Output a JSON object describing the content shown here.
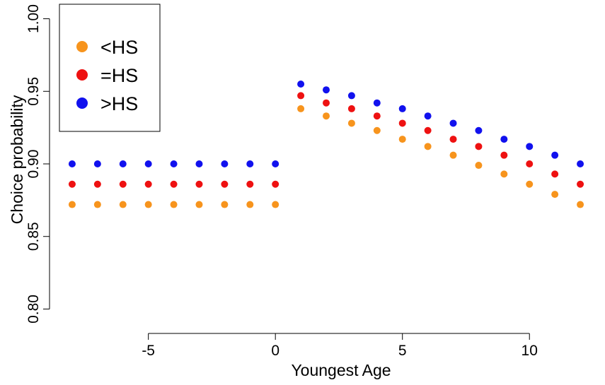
{
  "chart_data": {
    "type": "scatter",
    "xlabel": "Youngest Age",
    "ylabel": "Choice probability",
    "xlim": [
      -8.5,
      12.5
    ],
    "ylim": [
      0.79,
      1.01
    ],
    "xticks": [
      -5,
      0,
      5,
      10
    ],
    "xtick_labels": [
      "-5",
      "0",
      "5",
      "10"
    ],
    "yticks": [
      0.8,
      0.85,
      0.9,
      0.95,
      1.0
    ],
    "ytick_labels": [
      "0.80",
      "0.85",
      "0.90",
      "0.95",
      "1.00"
    ],
    "grid": false,
    "legend_position": "top-left",
    "x": [
      -8,
      -7,
      -6,
      -5,
      -4,
      -3,
      -2,
      -1,
      0,
      1,
      2,
      3,
      4,
      5,
      6,
      7,
      8,
      9,
      10,
      11,
      12
    ],
    "series": [
      {
        "name": "<HS",
        "color": "#f7941d",
        "values": [
          0.872,
          0.872,
          0.872,
          0.872,
          0.872,
          0.872,
          0.872,
          0.872,
          0.872,
          0.938,
          0.933,
          0.928,
          0.923,
          0.917,
          0.912,
          0.906,
          0.899,
          0.893,
          0.886,
          0.879,
          0.872
        ]
      },
      {
        "name": "=HS",
        "color": "#ee1111",
        "values": [
          0.886,
          0.886,
          0.886,
          0.886,
          0.886,
          0.886,
          0.886,
          0.886,
          0.886,
          0.947,
          0.942,
          0.938,
          0.933,
          0.928,
          0.923,
          0.917,
          0.912,
          0.906,
          0.9,
          0.893,
          0.886
        ]
      },
      {
        "name": ">HS",
        "color": "#1111ee",
        "values": [
          0.9,
          0.9,
          0.9,
          0.9,
          0.9,
          0.9,
          0.9,
          0.9,
          0.9,
          0.955,
          0.951,
          0.947,
          0.942,
          0.938,
          0.933,
          0.928,
          0.923,
          0.917,
          0.912,
          0.906,
          0.9
        ]
      }
    ]
  }
}
